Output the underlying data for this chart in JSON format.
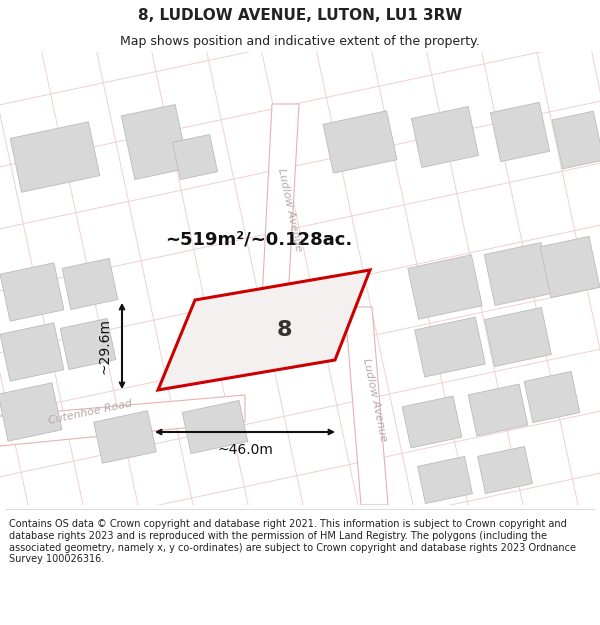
{
  "title": "8, LUDLOW AVENUE, LUTON, LU1 3RW",
  "subtitle": "Map shows position and indicative extent of the property.",
  "footer": "Contains OS data © Crown copyright and database right 2021. This information is subject to Crown copyright and database rights 2023 and is reproduced with the permission of HM Land Registry. The polygons (including the associated geometry, namely x, y co-ordinates) are subject to Crown copyright and database rights 2023 Ordnance Survey 100026316.",
  "area_label": "~519m²/~0.128ac.",
  "width_label": "~46.0m",
  "height_label": "~29.6m",
  "property_number": "8",
  "bg_color": "#ffffff",
  "map_bg": "#faf7f7",
  "road_color": "#e8b0b0",
  "road_light": "#f0d0d0",
  "building_color": "#d8d8d8",
  "building_edge": "#bbbbbb",
  "property_fill": "#f5f0f0",
  "property_edge": "#cc0000",
  "street_text_color": "#b8a8a8",
  "dim_color": "#111111",
  "title_color": "#222222",
  "footer_color": "#222222",
  "title_fontsize": 11,
  "subtitle_fontsize": 9,
  "footer_fontsize": 7,
  "area_fontsize": 13,
  "dim_fontsize": 10,
  "street_fontsize": 8,
  "prop_num_fontsize": 16
}
